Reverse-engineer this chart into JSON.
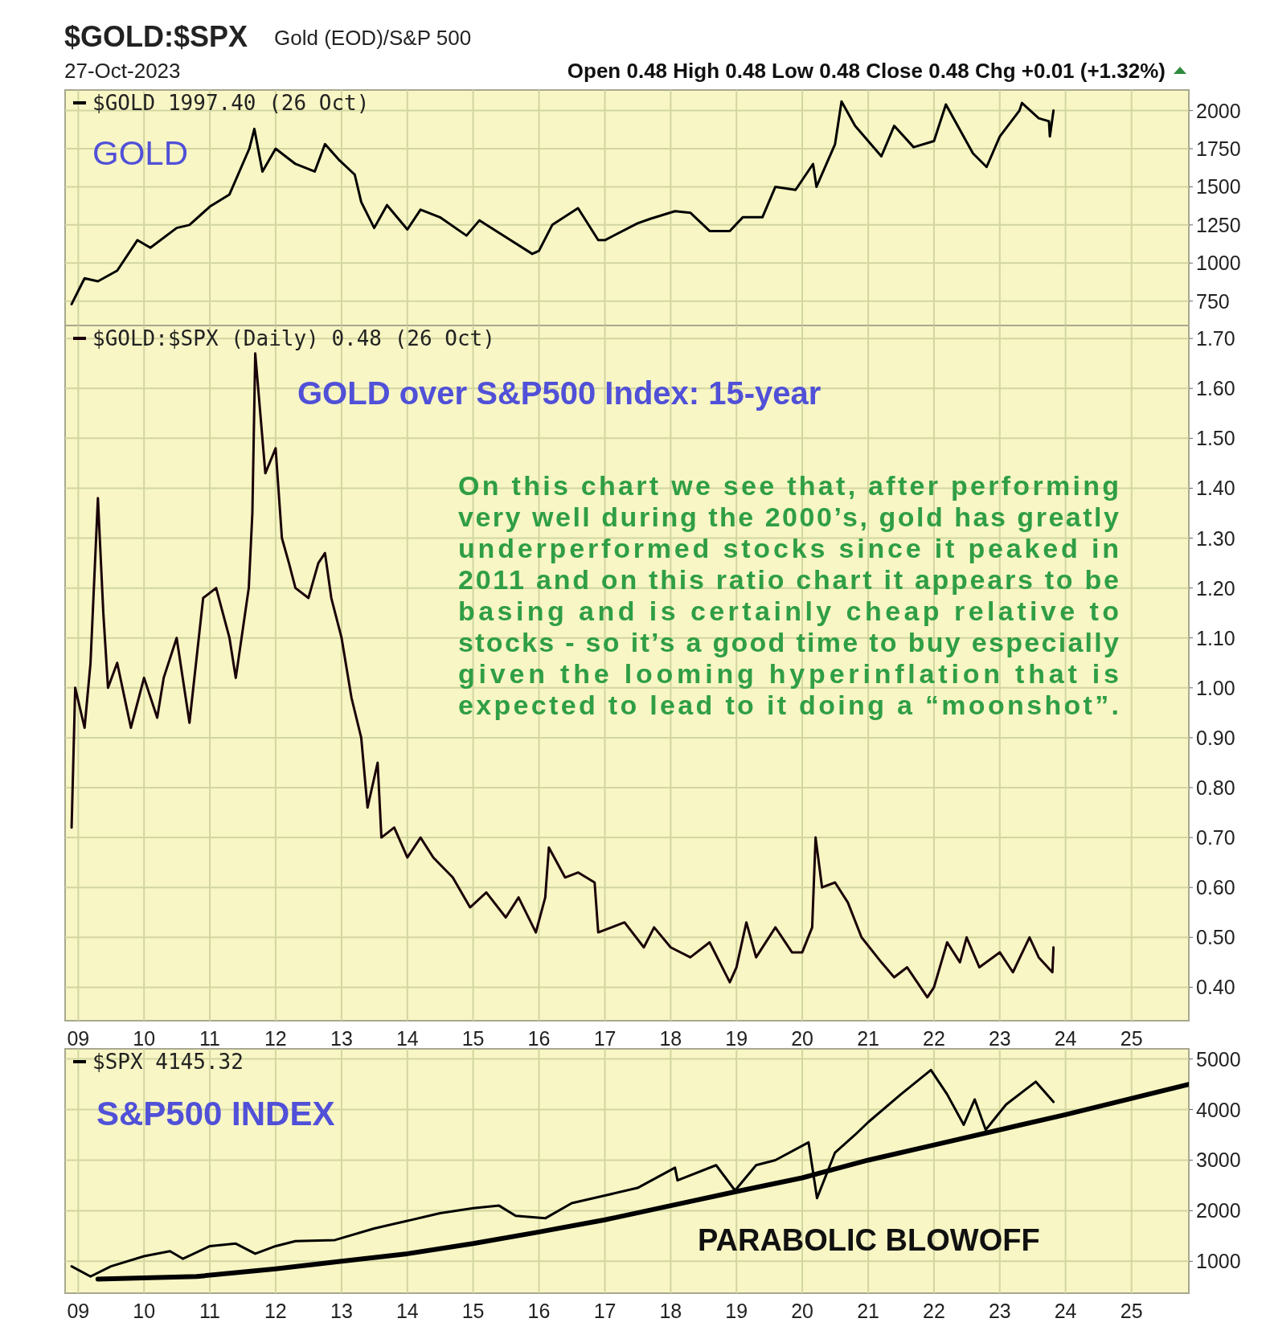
{
  "chart_data": [
    {
      "type": "line",
      "title": "$GOLD:$SPX",
      "subtitle": "Gold (EOD)/S&P 500",
      "annotations": [
        "27-Oct-2023",
        "Open 0.48  High 0.48  Low 0.48  Close 0.48  Chg +0.01 (+1.32%)",
        "GOLD"
      ],
      "xlim": [
        "2008-10-20",
        "2025-11-15"
      ],
      "xticks": [
        {
          "value": "2009-01-01",
          "label": null
        },
        {
          "value": "2010-01-01",
          "label": null
        },
        {
          "value": "2011-01-01",
          "label": null
        },
        {
          "value": "2012-01-01",
          "label": null
        },
        {
          "value": "2013-01-01",
          "label": null
        },
        {
          "value": "2014-01-01",
          "label": null
        },
        {
          "value": "2015-01-01",
          "label": null
        },
        {
          "value": "2016-01-01",
          "label": null
        },
        {
          "value": "2017-01-01",
          "label": null
        },
        {
          "value": "2018-01-01",
          "label": null
        },
        {
          "value": "2019-01-01",
          "label": null
        },
        {
          "value": "2020-01-01",
          "label": null
        },
        {
          "value": "2021-01-01",
          "label": null
        },
        {
          "value": "2022-01-01",
          "label": null
        },
        {
          "value": "2023-01-01",
          "label": null
        },
        {
          "value": "2024-01-01",
          "label": null
        },
        {
          "value": "2025-01-01",
          "label": null
        }
      ],
      "ylim": [
        590,
        2135
      ],
      "yticks": [
        750,
        1000,
        1250,
        1500,
        1750,
        2000
      ],
      "tick_labels": "y",
      "grid": true,
      "legend": "top left",
      "series": [
        {
          "name": "$GOLD 1997.40 (26 Oct)",
          "color": "#000000",
          "x": [
            "2008-11-25",
            "2009-02-05",
            "2009-04-20",
            "2009-08-05",
            "2009-11-25",
            "2010-02-05",
            "2010-07-01",
            "2010-09-10",
            "2011-01-01",
            "2011-04-20",
            "2011-08-08",
            "2011-09-05",
            "2011-10-20",
            "2012-01-01",
            "2012-04-20",
            "2012-08-05",
            "2012-10-01",
            "2012-12-15",
            "2013-03-15",
            "2013-04-20",
            "2013-07-01",
            "2013-09-10",
            "2014-01-01",
            "2014-03-15",
            "2014-07-01",
            "2014-11-25",
            "2015-02-05",
            "2015-07-01",
            "2015-11-25",
            "2016-01-01",
            "2016-03-15",
            "2016-08-05",
            "2016-11-25",
            "2017-01-01",
            "2017-07-01",
            "2017-09-10",
            "2018-01-25",
            "2018-04-20",
            "2018-08-05",
            "2018-11-25",
            "2019-02-05",
            "2019-05-25",
            "2019-08-05",
            "2019-11-25",
            "2020-03-01",
            "2020-03-20",
            "2020-07-01",
            "2020-08-06",
            "2020-10-20",
            "2021-03-15",
            "2021-05-25",
            "2021-09-10",
            "2022-01-01",
            "2022-03-08",
            "2022-08-05",
            "2022-10-20",
            "2023-01-01",
            "2023-04-20",
            "2023-05-04",
            "2023-08-05",
            "2023-10-01",
            "2023-10-06",
            "2023-10-26"
          ],
          "values": [
            730,
            900,
            880,
            950,
            1150,
            1100,
            1230,
            1250,
            1370,
            1450,
            1750,
            1880,
            1600,
            1750,
            1650,
            1600,
            1780,
            1680,
            1580,
            1400,
            1230,
            1380,
            1220,
            1350,
            1300,
            1180,
            1280,
            1170,
            1060,
            1080,
            1250,
            1360,
            1150,
            1150,
            1260,
            1290,
            1340,
            1330,
            1210,
            1210,
            1300,
            1300,
            1500,
            1480,
            1650,
            1500,
            1780,
            2060,
            1900,
            1700,
            1900,
            1760,
            1800,
            2040,
            1720,
            1630,
            1830,
            2000,
            2050,
            1950,
            1930,
            1830,
            2000
          ]
        }
      ]
    },
    {
      "type": "line",
      "annotations": [
        "GOLD over S&P500 Index: 15-year",
        "On this chart we see that, after performing\nvery well during the 2000’s, gold has greatly\nunderperformed stocks since it peaked in\n2011 and on this ratio chart it appears to be\nbasing and is certainly cheap relative to\nstocks - so it’s a good time to buy especially\ngiven the looming hyperinflation that is\nexpected to lead to it doing a “moonshot”."
      ],
      "xlim": [
        "2008-10-20",
        "2025-11-15"
      ],
      "xticks": [
        {
          "value": "2009-01-01",
          "label": "09"
        },
        {
          "value": "2010-01-01",
          "label": "10"
        },
        {
          "value": "2011-01-01",
          "label": "11"
        },
        {
          "value": "2012-01-01",
          "label": "12"
        },
        {
          "value": "2013-01-01",
          "label": "13"
        },
        {
          "value": "2014-01-01",
          "label": "14"
        },
        {
          "value": "2015-01-01",
          "label": "15"
        },
        {
          "value": "2016-01-01",
          "label": "16"
        },
        {
          "value": "2017-01-01",
          "label": "17"
        },
        {
          "value": "2018-01-01",
          "label": "18"
        },
        {
          "value": "2019-01-01",
          "label": "19"
        },
        {
          "value": "2020-01-01",
          "label": "20"
        },
        {
          "value": "2021-01-01",
          "label": "21"
        },
        {
          "value": "2022-01-01",
          "label": "22"
        },
        {
          "value": "2023-01-01",
          "label": "23"
        },
        {
          "value": "2024-01-01",
          "label": "24"
        },
        {
          "value": "2025-01-01",
          "label": "25"
        }
      ],
      "ylim": [
        0.333,
        1.726
      ],
      "yticks": [
        {
          "value": 0.4,
          "label": "0.40"
        },
        {
          "value": 0.5,
          "label": "0.50"
        },
        {
          "value": 0.6,
          "label": "0.60"
        },
        {
          "value": 0.7,
          "label": "0.70"
        },
        {
          "value": 0.8,
          "label": "0.80"
        },
        {
          "value": 0.9,
          "label": "0.90"
        },
        {
          "value": 1.0,
          "label": "1.00"
        },
        {
          "value": 1.1,
          "label": "1.10"
        },
        {
          "value": 1.2,
          "label": "1.20"
        },
        {
          "value": 1.3,
          "label": "1.30"
        },
        {
          "value": 1.4,
          "label": "1.40"
        },
        {
          "value": 1.5,
          "label": "1.50"
        },
        {
          "value": 1.6,
          "label": "1.60"
        },
        {
          "value": 1.7,
          "label": "1.70"
        }
      ],
      "grid": true,
      "legend": "top left",
      "series": [
        {
          "name": "$GOLD:$SPX (Daily) 0.48 (26 Oct)",
          "color": "#1a0008",
          "x": [
            "2008-11-25",
            "2008-12-15",
            "2009-02-05",
            "2009-03-10",
            "2009-04-20",
            "2009-05-20",
            "2009-06-15",
            "2009-08-05",
            "2009-10-20",
            "2010-01-01",
            "2010-03-15",
            "2010-04-20",
            "2010-07-01",
            "2010-09-10",
            "2010-11-25",
            "2011-02-05",
            "2011-04-20",
            "2011-05-25",
            "2011-08-05",
            "2011-08-25",
            "2011-09-10",
            "2011-11-05",
            "2012-01-01",
            "2012-02-05",
            "2012-03-15",
            "2012-04-20",
            "2012-07-01",
            "2012-08-25",
            "2012-10-01",
            "2012-11-05",
            "2013-01-01",
            "2013-02-25",
            "2013-04-20",
            "2013-05-25",
            "2013-07-20",
            "2013-08-10",
            "2013-10-20",
            "2014-01-01",
            "2014-03-15",
            "2014-05-25",
            "2014-09-10",
            "2014-12-15",
            "2015-03-15",
            "2015-07-01",
            "2015-09-10",
            "2015-12-15",
            "2016-02-05",
            "2016-02-25",
            "2016-05-25",
            "2016-08-05",
            "2016-11-05",
            "2016-11-25",
            "2017-04-20",
            "2017-08-05",
            "2017-10-01",
            "2018-01-01",
            "2018-04-20",
            "2018-08-05",
            "2018-11-25",
            "2019-01-01",
            "2019-02-25",
            "2019-04-20",
            "2019-08-05",
            "2019-11-05",
            "2020-01-01",
            "2020-02-25",
            "2020-03-15",
            "2020-04-20",
            "2020-07-01",
            "2020-09-10",
            "2020-11-25",
            "2021-03-15",
            "2021-05-25",
            "2021-08-05",
            "2021-11-25",
            "2022-01-01",
            "2022-03-15",
            "2022-05-25",
            "2022-07-01",
            "2022-09-10",
            "2023-01-01",
            "2023-03-15",
            "2023-06-15",
            "2023-08-05",
            "2023-10-20",
            "2023-10-26"
          ],
          "values": [
            0.72,
            1.0,
            0.92,
            1.05,
            1.38,
            1.15,
            1.0,
            1.05,
            0.92,
            1.02,
            0.94,
            1.02,
            1.1,
            0.93,
            1.18,
            1.2,
            1.1,
            1.02,
            1.2,
            1.35,
            1.67,
            1.43,
            1.48,
            1.3,
            1.25,
            1.2,
            1.18,
            1.25,
            1.27,
            1.18,
            1.1,
            0.98,
            0.9,
            0.76,
            0.85,
            0.7,
            0.72,
            0.66,
            0.7,
            0.66,
            0.62,
            0.56,
            0.59,
            0.54,
            0.58,
            0.51,
            0.58,
            0.68,
            0.62,
            0.63,
            0.61,
            0.51,
            0.53,
            0.48,
            0.52,
            0.48,
            0.46,
            0.49,
            0.41,
            0.44,
            0.53,
            0.46,
            0.52,
            0.47,
            0.47,
            0.52,
            0.7,
            0.6,
            0.61,
            0.57,
            0.5,
            0.45,
            0.42,
            0.44,
            0.38,
            0.4,
            0.49,
            0.45,
            0.5,
            0.44,
            0.47,
            0.43,
            0.5,
            0.46,
            0.43,
            0.48
          ]
        }
      ]
    },
    {
      "type": "line",
      "annotations": [
        "S&P500 INDEX",
        "PARABOLIC BLOWOFF"
      ],
      "xlim": [
        "2008-10-20",
        "2025-11-15"
      ],
      "xticks": [
        {
          "value": "2009-01-01",
          "label": "09"
        },
        {
          "value": "2010-01-01",
          "label": "10"
        },
        {
          "value": "2011-01-01",
          "label": "11"
        },
        {
          "value": "2012-01-01",
          "label": "12"
        },
        {
          "value": "2013-01-01",
          "label": "13"
        },
        {
          "value": "2014-01-01",
          "label": "14"
        },
        {
          "value": "2015-01-01",
          "label": "15"
        },
        {
          "value": "2016-01-01",
          "label": "16"
        },
        {
          "value": "2017-01-01",
          "label": "17"
        },
        {
          "value": "2018-01-01",
          "label": "18"
        },
        {
          "value": "2019-01-01",
          "label": "19"
        },
        {
          "value": "2020-01-01",
          "label": "20"
        },
        {
          "value": "2021-01-01",
          "label": "21"
        },
        {
          "value": "2022-01-01",
          "label": "22"
        },
        {
          "value": "2023-01-01",
          "label": "23"
        },
        {
          "value": "2024-01-01",
          "label": "24"
        },
        {
          "value": "2025-01-01",
          "label": "25"
        }
      ],
      "ylim": [
        370,
        5200
      ],
      "yticks": [
        1000,
        2000,
        3000,
        4000,
        5000
      ],
      "grid": true,
      "legend": "top left",
      "series": [
        {
          "name": "$SPX 4145.32",
          "color": "#000000",
          "x": [
            "2008-11-25",
            "2009-03-10",
            "2009-07-01",
            "2010-01-01",
            "2010-05-25",
            "2010-08-05",
            "2011-01-01",
            "2011-05-25",
            "2011-09-10",
            "2012-01-01",
            "2012-04-20",
            "2012-11-25",
            "2013-07-01",
            "2014-01-01",
            "2014-07-01",
            "2015-01-01",
            "2015-05-25",
            "2015-08-25",
            "2016-02-05",
            "2016-07-01",
            "2017-01-01",
            "2017-07-01",
            "2018-01-25",
            "2018-02-08",
            "2018-09-10",
            "2018-12-24",
            "2019-04-20",
            "2019-08-05",
            "2020-02-05",
            "2020-03-23",
            "2020-07-01",
            "2020-10-20",
            "2021-01-01",
            "2021-07-01",
            "2021-12-15",
            "2022-03-15",
            "2022-06-15",
            "2022-08-15",
            "2022-10-15",
            "2023-02-05",
            "2023-07-20",
            "2023-10-26"
          ],
          "values": [
            900,
            700,
            900,
            1100,
            1200,
            1050,
            1300,
            1350,
            1150,
            1300,
            1400,
            1420,
            1650,
            1800,
            1950,
            2050,
            2100,
            1900,
            1850,
            2150,
            2300,
            2450,
            2850,
            2600,
            2900,
            2400,
            2900,
            3000,
            3350,
            2250,
            3150,
            3500,
            3750,
            4300,
            4780,
            4300,
            3700,
            4200,
            3600,
            4100,
            4550,
            4150
          ]
        },
        {
          "type": "line",
          "color": "#000000",
          "x": [
            "2009-04-20",
            "2010-10-20",
            "2012-01-01",
            "2013-01-01",
            "2014-01-01",
            "2015-01-01",
            "2016-01-01",
            "2017-01-01",
            "2018-01-01",
            "2019-01-01",
            "2020-01-01",
            "2021-01-01",
            "2022-01-01",
            "2023-01-01",
            "2024-01-01",
            "2025-11-15"
          ],
          "values": [
            650,
            700,
            850,
            1000,
            1150,
            1350,
            1580,
            1820,
            2100,
            2380,
            2650,
            3000,
            3300,
            3600,
            3900,
            4500
          ]
        }
      ]
    }
  ]
}
